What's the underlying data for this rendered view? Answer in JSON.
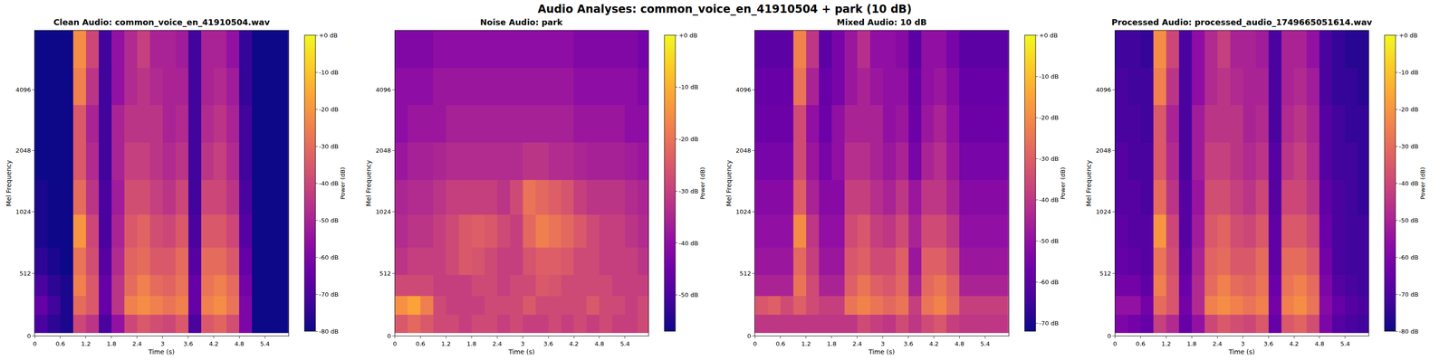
{
  "title": "Audio Analyses: common_voice_en_41910504 + park (10 dB)",
  "chart_data": [
    {
      "type": "heatmap",
      "title": "Clean Audio: common_voice_en_41910504.wav",
      "x_label": "Time (s)",
      "y_label": "Mel Frequency",
      "x": [
        0.15,
        0.45,
        0.75,
        1.05,
        1.35,
        1.65,
        1.95,
        2.25,
        2.55,
        2.85,
        3.15,
        3.45,
        3.75,
        4.05,
        4.35,
        4.65,
        4.95,
        5.25,
        5.55,
        5.85
      ],
      "y": [
        100,
        250,
        400,
        600,
        850,
        1200,
        1800,
        2800,
        4200,
        6500
      ],
      "z": [
        [
          -70,
          -75,
          -78,
          -40,
          -45,
          -70,
          -55,
          -40,
          -35,
          -38,
          -40,
          -35,
          -70,
          -35,
          -32,
          -38,
          -60,
          -80,
          -80,
          -80
        ],
        [
          -65,
          -72,
          -78,
          -30,
          -35,
          -65,
          -45,
          -25,
          -22,
          -25,
          -28,
          -25,
          -65,
          -25,
          -22,
          -28,
          -60,
          -80,
          -80,
          -80
        ],
        [
          -70,
          -75,
          -78,
          -25,
          -35,
          -65,
          -45,
          -30,
          -25,
          -30,
          -32,
          -28,
          -65,
          -28,
          -25,
          -30,
          -62,
          -80,
          -80,
          -80
        ],
        [
          -75,
          -78,
          -80,
          -28,
          -38,
          -68,
          -48,
          -32,
          -30,
          -35,
          -35,
          -30,
          -68,
          -30,
          -30,
          -35,
          -65,
          -80,
          -80,
          -80
        ],
        [
          -78,
          -80,
          -80,
          -20,
          -40,
          -70,
          -50,
          -35,
          -32,
          -38,
          -40,
          -35,
          -70,
          -35,
          -35,
          -40,
          -68,
          -80,
          -80,
          -80
        ],
        [
          -78,
          -80,
          -80,
          -30,
          -45,
          -70,
          -52,
          -38,
          -38,
          -42,
          -45,
          -40,
          -72,
          -40,
          -40,
          -45,
          -70,
          -80,
          -80,
          -80
        ],
        [
          -80,
          -80,
          -80,
          -35,
          -48,
          -72,
          -50,
          -42,
          -42,
          -45,
          -48,
          -45,
          -72,
          -45,
          -42,
          -48,
          -72,
          -80,
          -80,
          -80
        ],
        [
          -80,
          -80,
          -80,
          -35,
          -50,
          -72,
          -50,
          -45,
          -45,
          -45,
          -50,
          -48,
          -72,
          -48,
          -45,
          -50,
          -72,
          -80,
          -80,
          -80
        ],
        [
          -80,
          -80,
          -80,
          -25,
          -45,
          -72,
          -55,
          -48,
          -45,
          -48,
          -50,
          -50,
          -72,
          -50,
          -48,
          -52,
          -74,
          -80,
          -80,
          -80
        ],
        [
          -80,
          -80,
          -80,
          -22,
          -40,
          -72,
          -55,
          -48,
          -42,
          -50,
          -50,
          -52,
          -72,
          -50,
          -50,
          -55,
          -74,
          -80,
          -80,
          -80
        ]
      ],
      "xlim": [
        0,
        5.95
      ],
      "xticks": [
        0,
        0.6,
        1.2,
        1.8,
        2.4,
        3,
        3.6,
        4.2,
        4.8,
        5.4
      ],
      "ylim": [
        0,
        8000
      ],
      "yticks": [
        0,
        512,
        1024,
        2048,
        4096
      ],
      "colorbar": {
        "title": "Power (dB)",
        "range": [
          -80,
          0
        ],
        "ticks": [
          {
            "value": 0,
            "label": "+0 dB"
          },
          {
            "value": -10,
            "label": "-10 dB"
          },
          {
            "value": -20,
            "label": "-20 dB"
          },
          {
            "value": -30,
            "label": "-30 dB"
          },
          {
            "value": -40,
            "label": "-40 dB"
          },
          {
            "value": -50,
            "label": "-50 dB"
          },
          {
            "value": -60,
            "label": "-60 dB"
          },
          {
            "value": -70,
            "label": "-70 dB"
          },
          {
            "value": -80,
            "label": "-80 dB"
          }
        ]
      }
    },
    {
      "type": "heatmap",
      "title": "Noise Audio: park",
      "x_label": "Time (s)",
      "y_label": "Mel Frequency",
      "x": [
        0.15,
        0.45,
        0.75,
        1.05,
        1.35,
        1.65,
        1.95,
        2.25,
        2.55,
        2.85,
        3.15,
        3.45,
        3.75,
        4.05,
        4.35,
        4.65,
        4.95,
        5.25,
        5.55,
        5.85
      ],
      "y": [
        100,
        250,
        400,
        600,
        850,
        1200,
        1800,
        2800,
        4200,
        6500
      ],
      "z": [
        [
          -25,
          -22,
          -25,
          -28,
          -28,
          -30,
          -28,
          -28,
          -30,
          -28,
          -30,
          -30,
          -28,
          -30,
          -28,
          -30,
          -28,
          -30,
          -30,
          -28
        ],
        [
          -15,
          -12,
          -18,
          -28,
          -30,
          -30,
          -30,
          -28,
          -28,
          -28,
          -25,
          -28,
          -28,
          -28,
          -28,
          -25,
          -28,
          -28,
          -30,
          -28
        ],
        [
          -28,
          -28,
          -28,
          -30,
          -30,
          -30,
          -28,
          -28,
          -30,
          -28,
          -28,
          -25,
          -26,
          -28,
          -28,
          -28,
          -28,
          -30,
          -30,
          -30
        ],
        [
          -32,
          -30,
          -30,
          -30,
          -28,
          -25,
          -26,
          -28,
          -30,
          -30,
          -26,
          -24,
          -24,
          -25,
          -28,
          -28,
          -30,
          -30,
          -30,
          -32
        ],
        [
          -34,
          -32,
          -32,
          -30,
          -28,
          -25,
          -24,
          -25,
          -28,
          -30,
          -22,
          -18,
          -20,
          -22,
          -25,
          -28,
          -30,
          -30,
          -32,
          -34
        ],
        [
          -35,
          -34,
          -34,
          -32,
          -30,
          -30,
          -30,
          -30,
          -32,
          -28,
          -20,
          -22,
          -24,
          -26,
          -30,
          -32,
          -32,
          -32,
          -34,
          -35
        ],
        [
          -38,
          -36,
          -36,
          -35,
          -34,
          -34,
          -34,
          -34,
          -34,
          -34,
          -32,
          -32,
          -34,
          -34,
          -35,
          -36,
          -36,
          -36,
          -37,
          -38
        ],
        [
          -40,
          -38,
          -38,
          -38,
          -36,
          -36,
          -36,
          -36,
          -36,
          -36,
          -36,
          -36,
          -36,
          -36,
          -38,
          -38,
          -38,
          -38,
          -40,
          -40
        ],
        [
          -40,
          -40,
          -40,
          -38,
          -38,
          -38,
          -38,
          -38,
          -38,
          -38,
          -38,
          -38,
          -38,
          -38,
          -40,
          -40,
          -40,
          -40,
          -40,
          -42
        ],
        [
          -42,
          -42,
          -42,
          -40,
          -40,
          -40,
          -40,
          -40,
          -40,
          -40,
          -40,
          -40,
          -40,
          -40,
          -42,
          -42,
          -42,
          -42,
          -42,
          -44
        ]
      ],
      "xlim": [
        0,
        5.95
      ],
      "xticks": [
        0,
        0.6,
        1.2,
        1.8,
        2.4,
        3,
        3.6,
        4.2,
        4.8,
        5.4
      ],
      "ylim": [
        0,
        8000
      ],
      "yticks": [
        0,
        512,
        1024,
        2048,
        4096
      ],
      "colorbar": {
        "title": "Power (dB)",
        "range": [
          -57,
          0
        ],
        "ticks": [
          {
            "value": 0,
            "label": "+0 dB"
          },
          {
            "value": -10,
            "label": "-10 dB"
          },
          {
            "value": -20,
            "label": "-20 dB"
          },
          {
            "value": -30,
            "label": "-30 dB"
          },
          {
            "value": -40,
            "label": "-40 dB"
          },
          {
            "value": -50,
            "label": "-50 dB"
          }
        ]
      }
    },
    {
      "type": "heatmap",
      "title": "Mixed Audio: 10 dB",
      "x_label": "Time (s)",
      "y_label": "Mel Frequency",
      "x": [
        0.15,
        0.45,
        0.75,
        1.05,
        1.35,
        1.65,
        1.95,
        2.25,
        2.55,
        2.85,
        3.15,
        3.45,
        3.75,
        4.05,
        4.35,
        4.65,
        4.95,
        5.25,
        5.55,
        5.85
      ],
      "y": [
        100,
        250,
        400,
        600,
        850,
        1200,
        1800,
        2800,
        4200,
        6500
      ],
      "z": [
        [
          -40,
          -40,
          -40,
          -40,
          -40,
          -40,
          -40,
          -40,
          -35,
          -38,
          -40,
          -35,
          -40,
          -35,
          -32,
          -38,
          -40,
          -40,
          -40,
          -40
        ],
        [
          -32,
          -30,
          -35,
          -30,
          -35,
          -38,
          -38,
          -25,
          -22,
          -25,
          -28,
          -25,
          -38,
          -25,
          -22,
          -28,
          -38,
          -38,
          -38,
          -38
        ],
        [
          -45,
          -45,
          -45,
          -25,
          -35,
          -45,
          -45,
          -30,
          -25,
          -30,
          -32,
          -28,
          -45,
          -28,
          -25,
          -30,
          -45,
          -45,
          -45,
          -45
        ],
        [
          -48,
          -48,
          -48,
          -28,
          -38,
          -48,
          -48,
          -32,
          -30,
          -35,
          -35,
          -30,
          -48,
          -30,
          -30,
          -35,
          -48,
          -48,
          -48,
          -48
        ],
        [
          -50,
          -50,
          -50,
          -20,
          -40,
          -50,
          -50,
          -35,
          -32,
          -38,
          -40,
          -35,
          -45,
          -35,
          -35,
          -40,
          -50,
          -50,
          -50,
          -50
        ],
        [
          -52,
          -52,
          -52,
          -30,
          -45,
          -52,
          -52,
          -38,
          -38,
          -42,
          -45,
          -40,
          -48,
          -40,
          -40,
          -45,
          -52,
          -52,
          -52,
          -52
        ],
        [
          -55,
          -55,
          -55,
          -35,
          -48,
          -55,
          -50,
          -42,
          -42,
          -45,
          -48,
          -45,
          -55,
          -45,
          -42,
          -48,
          -55,
          -55,
          -55,
          -55
        ],
        [
          -57,
          -57,
          -57,
          -35,
          -50,
          -57,
          -50,
          -45,
          -45,
          -45,
          -50,
          -48,
          -57,
          -48,
          -45,
          -50,
          -57,
          -57,
          -57,
          -57
        ],
        [
          -58,
          -58,
          -58,
          -25,
          -45,
          -58,
          -55,
          -48,
          -45,
          -48,
          -50,
          -50,
          -58,
          -50,
          -48,
          -52,
          -58,
          -58,
          -58,
          -58
        ],
        [
          -60,
          -60,
          -60,
          -22,
          -40,
          -60,
          -55,
          -48,
          -42,
          -50,
          -50,
          -52,
          -60,
          -50,
          -50,
          -55,
          -60,
          -60,
          -60,
          -60
        ]
      ],
      "xlim": [
        0,
        5.95
      ],
      "xticks": [
        0,
        0.6,
        1.2,
        1.8,
        2.4,
        3,
        3.6,
        4.2,
        4.8,
        5.4
      ],
      "ylim": [
        0,
        8000
      ],
      "yticks": [
        0,
        512,
        1024,
        2048,
        4096
      ],
      "colorbar": {
        "title": "Power (dB)",
        "range": [
          -72,
          0
        ],
        "ticks": [
          {
            "value": 0,
            "label": "+0 dB"
          },
          {
            "value": -10,
            "label": "-10 dB"
          },
          {
            "value": -20,
            "label": "-20 dB"
          },
          {
            "value": -30,
            "label": "-30 dB"
          },
          {
            "value": -40,
            "label": "-40 dB"
          },
          {
            "value": -50,
            "label": "-50 dB"
          },
          {
            "value": -60,
            "label": "-60 dB"
          },
          {
            "value": -70,
            "label": "-70 dB"
          }
        ]
      }
    },
    {
      "type": "heatmap",
      "title": "Processed Audio: processed_audio_1749665051614.wav",
      "x_label": "Time (s)",
      "y_label": "Mel Frequency",
      "x": [
        0.15,
        0.45,
        0.75,
        1.05,
        1.35,
        1.65,
        1.95,
        2.25,
        2.55,
        2.85,
        3.15,
        3.45,
        3.75,
        4.05,
        4.35,
        4.65,
        4.95,
        5.25,
        5.55,
        5.85
      ],
      "y": [
        100,
        250,
        400,
        600,
        850,
        1200,
        1800,
        2800,
        4200,
        6500
      ],
      "z": [
        [
          -60,
          -62,
          -65,
          -42,
          -48,
          -65,
          -55,
          -40,
          -35,
          -38,
          -40,
          -35,
          -65,
          -35,
          -32,
          -38,
          -60,
          -68,
          -70,
          -72
        ],
        [
          -55,
          -55,
          -62,
          -30,
          -36,
          -62,
          -48,
          -25,
          -22,
          -25,
          -28,
          -25,
          -62,
          -25,
          -22,
          -28,
          -58,
          -65,
          -68,
          -70
        ],
        [
          -62,
          -62,
          -66,
          -25,
          -36,
          -64,
          -48,
          -30,
          -25,
          -30,
          -32,
          -28,
          -64,
          -28,
          -25,
          -30,
          -60,
          -68,
          -70,
          -72
        ],
        [
          -65,
          -66,
          -68,
          -28,
          -38,
          -66,
          -50,
          -32,
          -30,
          -35,
          -35,
          -30,
          -66,
          -30,
          -30,
          -35,
          -62,
          -70,
          -72,
          -72
        ],
        [
          -66,
          -68,
          -68,
          -20,
          -40,
          -68,
          -52,
          -35,
          -32,
          -38,
          -40,
          -35,
          -66,
          -35,
          -35,
          -40,
          -64,
          -70,
          -72,
          -72
        ],
        [
          -68,
          -68,
          -70,
          -30,
          -45,
          -68,
          -54,
          -38,
          -38,
          -42,
          -45,
          -40,
          -68,
          -40,
          -40,
          -45,
          -66,
          -70,
          -72,
          -74
        ],
        [
          -68,
          -70,
          -70,
          -35,
          -48,
          -70,
          -52,
          -42,
          -42,
          -45,
          -48,
          -45,
          -68,
          -45,
          -42,
          -48,
          -68,
          -72,
          -72,
          -74
        ],
        [
          -70,
          -70,
          -72,
          -35,
          -50,
          -70,
          -52,
          -45,
          -45,
          -45,
          -50,
          -48,
          -70,
          -48,
          -45,
          -50,
          -68,
          -72,
          -74,
          -74
        ],
        [
          -70,
          -72,
          -72,
          -25,
          -45,
          -70,
          -56,
          -48,
          -45,
          -48,
          -50,
          -50,
          -70,
          -50,
          -48,
          -52,
          -70,
          -74,
          -74,
          -76
        ],
        [
          -72,
          -72,
          -74,
          -22,
          -40,
          -70,
          -56,
          -48,
          -42,
          -50,
          -50,
          -52,
          -70,
          -50,
          -50,
          -55,
          -70,
          -74,
          -76,
          -76
        ]
      ],
      "xlim": [
        0,
        5.95
      ],
      "xticks": [
        0,
        0.6,
        1.2,
        1.8,
        2.4,
        3,
        3.6,
        4.2,
        4.8,
        5.4
      ],
      "ylim": [
        0,
        8000
      ],
      "yticks": [
        0,
        512,
        1024,
        2048,
        4096
      ],
      "colorbar": {
        "title": "Power (dB)",
        "range": [
          -80,
          0
        ],
        "ticks": [
          {
            "value": 0,
            "label": "+0 dB"
          },
          {
            "value": -10,
            "label": "-10 dB"
          },
          {
            "value": -20,
            "label": "-20 dB"
          },
          {
            "value": -30,
            "label": "-30 dB"
          },
          {
            "value": -40,
            "label": "-40 dB"
          },
          {
            "value": -50,
            "label": "-50 dB"
          },
          {
            "value": -60,
            "label": "-60 dB"
          },
          {
            "value": -70,
            "label": "-70 dB"
          },
          {
            "value": -80,
            "label": "-80 dB"
          }
        ]
      }
    }
  ]
}
